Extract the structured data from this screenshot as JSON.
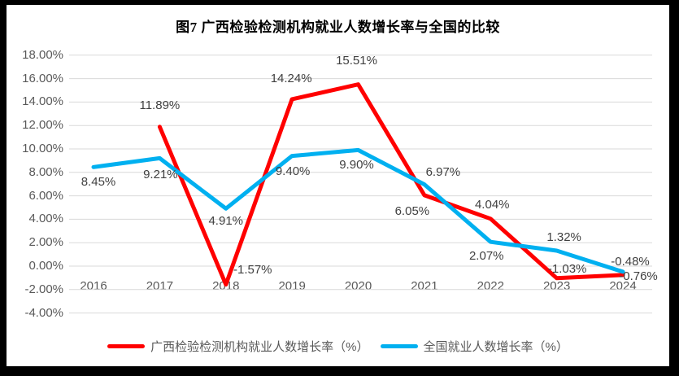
{
  "window": {
    "background": "#000000",
    "canvas_background": "#FFFFFF"
  },
  "chart_data": {
    "type": "line",
    "title": "图7 广西检验检测机构就业人数增长率与全国的比较",
    "categories": [
      "2016",
      "2017",
      "2018",
      "2019",
      "2020",
      "2021",
      "2022",
      "2023",
      "2024"
    ],
    "series": [
      {
        "name": "广西检验检测机构就业人数增长率（%）",
        "color": "#FF0000",
        "values": [
          null,
          11.89,
          -1.57,
          14.24,
          15.51,
          6.05,
          4.04,
          -1.03,
          -0.76
        ],
        "point_labels": [
          "",
          "11.89%",
          "-1.57%",
          "14.24%",
          "15.51%",
          "6.05%",
          "4.04%",
          "-1.03%",
          "-0.76%"
        ],
        "label_offsets": [
          [
            0,
            0
          ],
          [
            0,
            -26
          ],
          [
            33,
            -18
          ],
          [
            -1,
            -25
          ],
          [
            -2,
            -29
          ],
          [
            -15,
            20
          ],
          [
            2,
            -17
          ],
          [
            13,
            -11
          ],
          [
            19,
            2
          ]
        ]
      },
      {
        "name": "全国就业人数增长率（%）",
        "color": "#00B0F0",
        "values": [
          8.45,
          9.21,
          4.91,
          9.4,
          9.9,
          6.97,
          2.07,
          1.32,
          -0.48
        ],
        "point_labels": [
          "8.45%",
          "9.21%",
          "4.91%",
          "9.40%",
          "9.90%",
          "6.97%",
          "2.07%",
          "1.32%",
          "-0.48%"
        ],
        "label_offsets": [
          [
            6,
            19
          ],
          [
            1,
            21
          ],
          [
            0,
            16
          ],
          [
            1,
            19
          ],
          [
            -2,
            19
          ],
          [
            23,
            -15
          ],
          [
            -5,
            18
          ],
          [
            9,
            -16
          ],
          [
            9,
            -12
          ]
        ]
      }
    ],
    "ylim": [
      -4,
      18
    ],
    "ytick_step": 2,
    "yticks": [
      {
        "value": 18,
        "label": "18.00%"
      },
      {
        "value": 16,
        "label": "16.00%"
      },
      {
        "value": 14,
        "label": "14.00%"
      },
      {
        "value": 12,
        "label": "12.00%"
      },
      {
        "value": 10,
        "label": "10.00%"
      },
      {
        "value": 8,
        "label": "8.00%"
      },
      {
        "value": 6,
        "label": "6.00%"
      },
      {
        "value": 4,
        "label": "4.00%"
      },
      {
        "value": 2,
        "label": "2.00%"
      },
      {
        "value": 0,
        "label": "0.00%"
      },
      {
        "value": -2,
        "label": "-2.00%"
      },
      {
        "value": -4,
        "label": "-4.00%"
      }
    ],
    "grid": true,
    "legend_position": "bottom",
    "colors": {
      "gridline": "#D9D9D9",
      "axis_text": "#595959",
      "data_label_text": "#404040",
      "title_text": "#000000"
    }
  }
}
